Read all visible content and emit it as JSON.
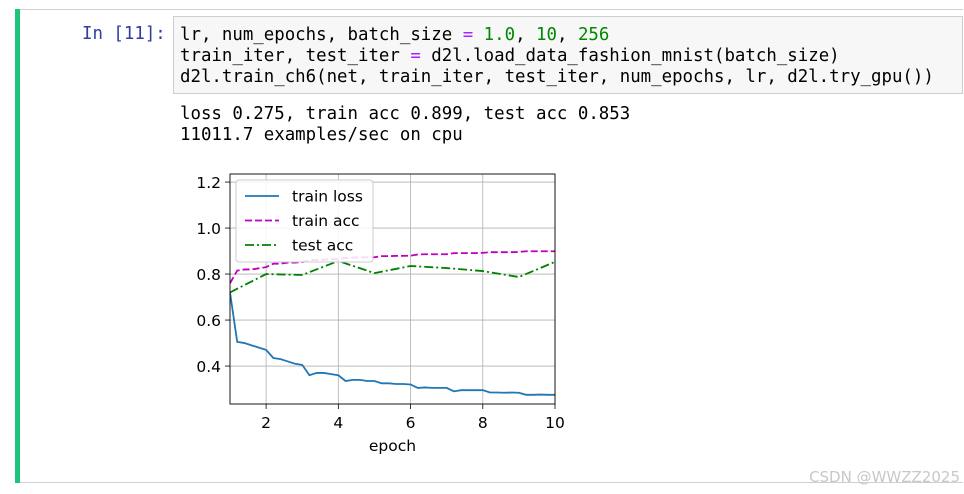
{
  "prompt": "In [11]:",
  "code": {
    "lines": [
      [
        {
          "text": "lr, num_epochs, batch_size ",
          "color": "#000000"
        },
        {
          "text": "=",
          "color": "#aa22ff"
        },
        {
          "text": " ",
          "color": "#000000"
        },
        {
          "text": "1.0",
          "color": "#008800"
        },
        {
          "text": ", ",
          "color": "#000000"
        },
        {
          "text": "10",
          "color": "#008800"
        },
        {
          "text": ", ",
          "color": "#000000"
        },
        {
          "text": "256",
          "color": "#008800"
        }
      ],
      [
        {
          "text": "train_iter, test_iter ",
          "color": "#000000"
        },
        {
          "text": "=",
          "color": "#aa22ff"
        },
        {
          "text": " d2l.load_data_fashion_mnist(batch_size)",
          "color": "#000000"
        }
      ],
      [
        {
          "text": "d2l.train_ch6(net, train_iter, test_iter, num_epochs, lr, d2l.try_gpu())",
          "color": "#000000"
        }
      ]
    ]
  },
  "output": {
    "lines": [
      "loss 0.275, train acc 0.899, test acc 0.853",
      "11011.7 examples/sec on cpu"
    ]
  },
  "chart_data": {
    "type": "line",
    "xlabel": "epoch",
    "xlim": [
      1,
      10
    ],
    "ylim": [
      0.235,
      1.235
    ],
    "xticks": [
      2,
      4,
      6,
      8,
      10
    ],
    "yticks": [
      0.4,
      0.6,
      0.8,
      {
        "value": 1,
        "label": "1.0"
      },
      1.2
    ],
    "grid": true,
    "legend": "upper-left",
    "series": [
      {
        "name": "train loss",
        "color": "#1f77b4",
        "linestyle": "-",
        "x": [
          1.0,
          1.2,
          1.4,
          1.6,
          1.8,
          2.0,
          2.2,
          2.4,
          2.6,
          2.8,
          3.0,
          3.2,
          3.4,
          3.6,
          3.8,
          4.0,
          4.2,
          4.4,
          4.6,
          4.8,
          5.0,
          5.2,
          5.4,
          5.6,
          5.8,
          6.0,
          6.2,
          6.4,
          6.6,
          6.8,
          7.0,
          7.2,
          7.4,
          7.6,
          7.8,
          8.0,
          8.2,
          8.4,
          8.6,
          8.8,
          9.0,
          9.2,
          9.4,
          9.6,
          9.8,
          10.0
        ],
        "values": [
          0.72,
          0.505,
          0.5,
          0.49,
          0.48,
          0.47,
          0.435,
          0.43,
          0.42,
          0.41,
          0.405,
          0.36,
          0.37,
          0.37,
          0.365,
          0.36,
          0.335,
          0.34,
          0.34,
          0.335,
          0.335,
          0.325,
          0.325,
          0.322,
          0.322,
          0.32,
          0.305,
          0.307,
          0.305,
          0.305,
          0.305,
          0.29,
          0.295,
          0.295,
          0.295,
          0.295,
          0.285,
          0.285,
          0.284,
          0.285,
          0.284,
          0.275,
          0.275,
          0.276,
          0.275,
          0.275
        ]
      },
      {
        "name": "train acc",
        "color": "#bf00bf",
        "linestyle": "--",
        "x": [
          1.0,
          1.2,
          1.4,
          1.6,
          1.8,
          2.0,
          2.2,
          2.4,
          2.6,
          2.8,
          3.0,
          3.2,
          3.4,
          3.6,
          3.8,
          4.0,
          4.2,
          4.4,
          4.6,
          4.8,
          5.0,
          5.2,
          5.4,
          5.6,
          5.8,
          6.0,
          6.2,
          6.4,
          6.6,
          6.8,
          7.0,
          7.2,
          7.4,
          7.6,
          7.8,
          8.0,
          8.2,
          8.4,
          8.6,
          8.8,
          9.0,
          9.2,
          9.4,
          9.6,
          9.8,
          10.0
        ],
        "values": [
          0.76,
          0.815,
          0.82,
          0.82,
          0.825,
          0.83,
          0.845,
          0.845,
          0.85,
          0.85,
          0.852,
          0.86,
          0.862,
          0.862,
          0.865,
          0.865,
          0.87,
          0.872,
          0.872,
          0.873,
          0.873,
          0.878,
          0.878,
          0.879,
          0.879,
          0.88,
          0.885,
          0.886,
          0.886,
          0.886,
          0.886,
          0.891,
          0.891,
          0.891,
          0.891,
          0.892,
          0.895,
          0.895,
          0.895,
          0.895,
          0.896,
          0.899,
          0.899,
          0.899,
          0.899,
          0.899
        ]
      },
      {
        "name": "test acc",
        "color": "#008000",
        "linestyle": "-.",
        "x": [
          1,
          2,
          3,
          4,
          5,
          6,
          7,
          8,
          9,
          10
        ],
        "values": [
          0.72,
          0.8,
          0.796,
          0.857,
          0.804,
          0.835,
          0.826,
          0.813,
          0.787,
          0.853
        ]
      }
    ]
  },
  "watermark": "CSDN @WWZZ2025"
}
